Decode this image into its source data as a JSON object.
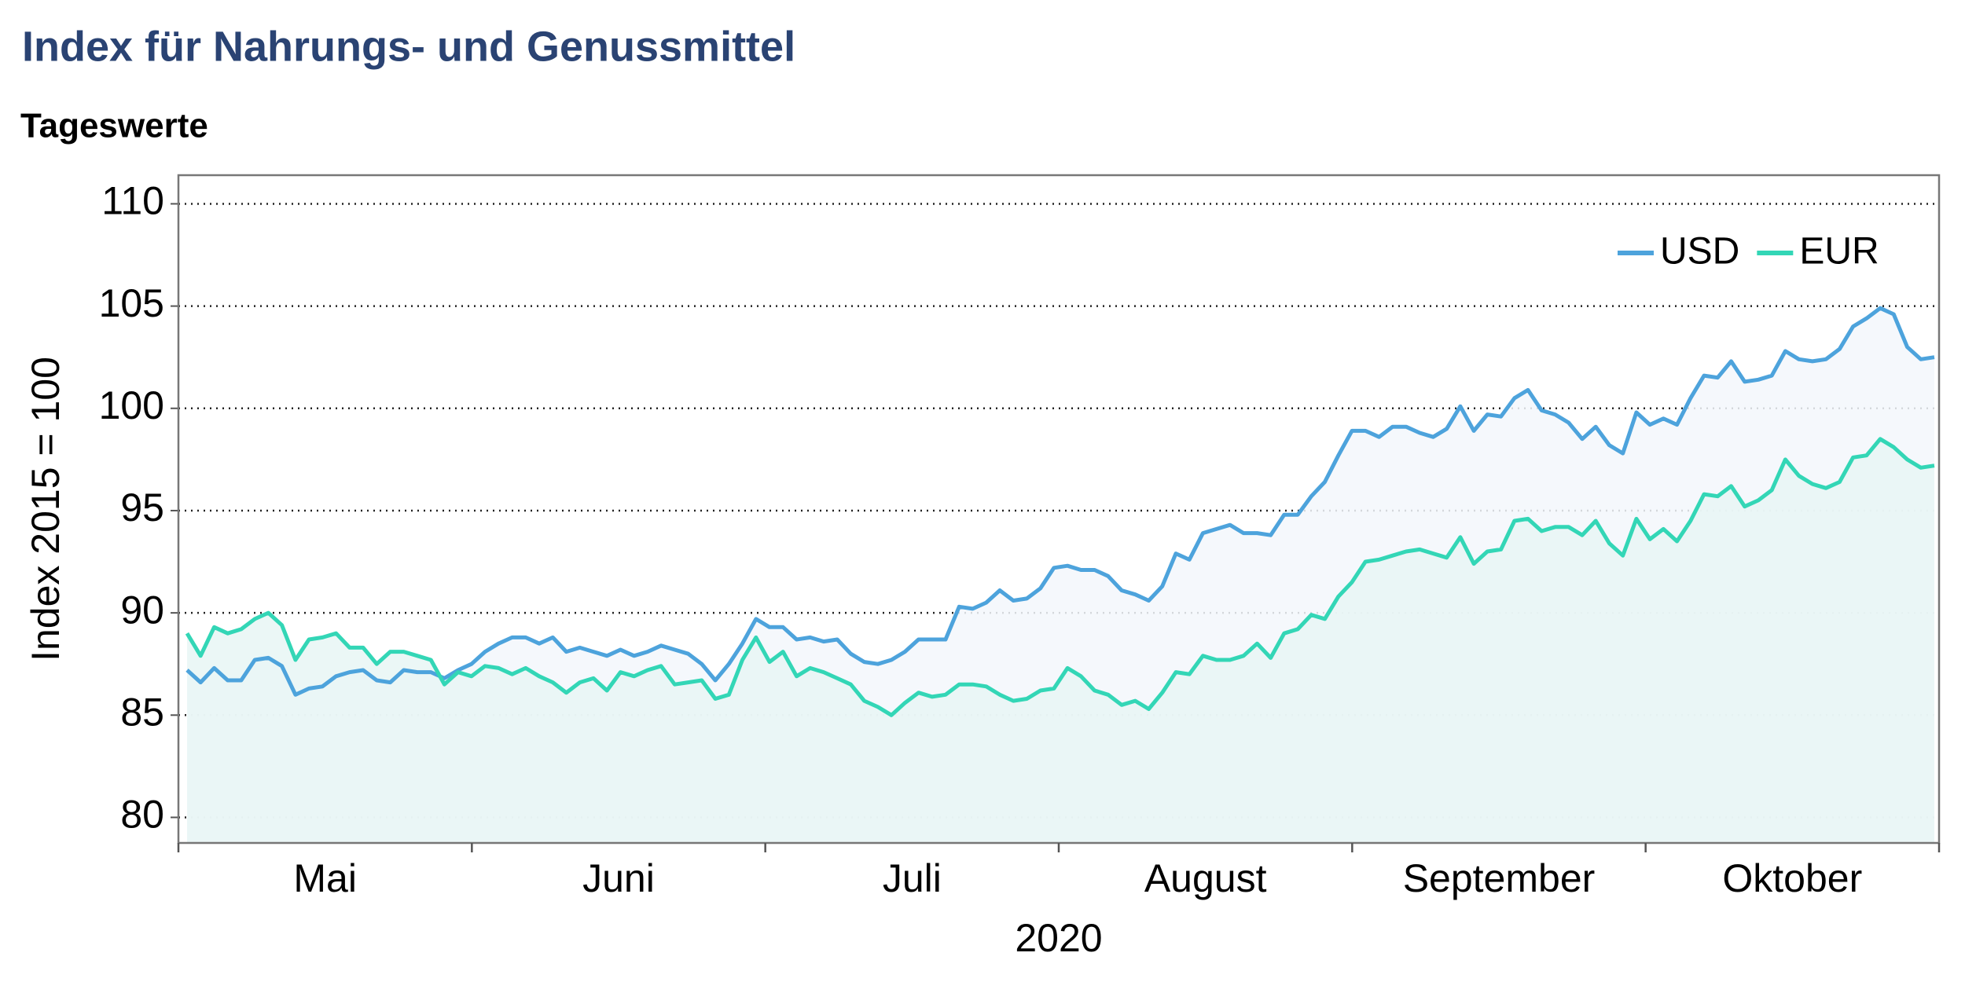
{
  "chart_data": {
    "type": "line",
    "title": "Index für Nahrungs- und Genussmittel",
    "subtitle": "Tageswerte",
    "ylabel": "Index 2015 = 100",
    "xlabel": "2020",
    "months": [
      "Mai",
      "Juni",
      "Juli",
      "August",
      "September",
      "Oktober"
    ],
    "ylim": [
      78.75,
      111.4
    ],
    "yticks": [
      80,
      85,
      90,
      95,
      100,
      105,
      110
    ],
    "grid": true,
    "legend": "upper right",
    "series": [
      {
        "name": "USD",
        "color": "#4da3dc",
        "fill": "#f3f7fb",
        "values": [
          87.2,
          86.6,
          87.3,
          86.7,
          86.7,
          87.7,
          87.8,
          87.4,
          86.0,
          86.3,
          86.4,
          86.9,
          87.1,
          87.2,
          86.7,
          86.6,
          87.2,
          87.1,
          87.1,
          86.8,
          87.2,
          87.5,
          88.1,
          88.5,
          88.8,
          88.8,
          88.5,
          88.8,
          88.1,
          88.3,
          88.1,
          87.9,
          88.2,
          87.9,
          88.1,
          88.4,
          88.2,
          88.0,
          87.5,
          86.7,
          87.5,
          88.5,
          89.7,
          89.3,
          89.3,
          88.7,
          88.8,
          88.6,
          88.7,
          88.0,
          87.6,
          87.5,
          87.7,
          88.1,
          88.7,
          88.7,
          88.7,
          90.3,
          90.2,
          90.5,
          91.1,
          90.6,
          90.7,
          91.2,
          92.2,
          92.3,
          92.1,
          92.1,
          91.8,
          91.1,
          90.9,
          90.6,
          91.3,
          92.9,
          92.6,
          93.9,
          94.1,
          94.3,
          93.9,
          93.9,
          93.8,
          94.8,
          94.8,
          95.7,
          96.4,
          97.7,
          98.9,
          98.9,
          98.6,
          99.1,
          99.1,
          98.8,
          98.6,
          99.0,
          100.1,
          98.9,
          99.7,
          99.6,
          100.5,
          100.9,
          99.9,
          99.7,
          99.3,
          98.5,
          99.1,
          98.2,
          97.8,
          99.8,
          99.2,
          99.5,
          99.2,
          100.5,
          101.6,
          101.5,
          102.3,
          101.3,
          101.4,
          101.6,
          102.8,
          102.4,
          102.3,
          102.4,
          102.9,
          104.0,
          104.4,
          104.9,
          104.6,
          103.0,
          102.4,
          102.5
        ]
      },
      {
        "name": "EUR",
        "color": "#33d6b6",
        "fill": "#e8f6f5",
        "values": [
          89.0,
          87.9,
          89.3,
          89.0,
          89.2,
          89.7,
          90.0,
          89.4,
          87.7,
          88.7,
          88.8,
          89.0,
          88.3,
          88.3,
          87.5,
          88.1,
          88.1,
          87.9,
          87.7,
          86.5,
          87.1,
          86.9,
          87.4,
          87.3,
          87.0,
          87.3,
          86.9,
          86.6,
          86.1,
          86.6,
          86.8,
          86.2,
          87.1,
          86.9,
          87.2,
          87.4,
          86.5,
          86.6,
          86.7,
          85.8,
          86.0,
          87.7,
          88.8,
          87.6,
          88.1,
          86.9,
          87.3,
          87.1,
          86.8,
          86.5,
          85.7,
          85.4,
          85.0,
          85.6,
          86.1,
          85.9,
          86.0,
          86.5,
          86.5,
          86.4,
          86.0,
          85.7,
          85.8,
          86.2,
          86.3,
          87.3,
          86.9,
          86.2,
          86.0,
          85.5,
          85.7,
          85.3,
          86.1,
          87.1,
          87.0,
          87.9,
          87.7,
          87.7,
          87.9,
          88.5,
          87.8,
          89.0,
          89.2,
          89.9,
          89.7,
          90.8,
          91.5,
          92.5,
          92.6,
          92.8,
          93.0,
          93.1,
          92.9,
          92.7,
          93.7,
          92.4,
          93.0,
          93.1,
          94.5,
          94.6,
          94.0,
          94.2,
          94.2,
          93.8,
          94.5,
          93.4,
          92.8,
          94.6,
          93.6,
          94.1,
          93.5,
          94.5,
          95.8,
          95.7,
          96.2,
          95.2,
          95.5,
          96.0,
          97.5,
          96.7,
          96.3,
          96.1,
          96.4,
          97.6,
          97.7,
          98.5,
          98.1,
          97.5,
          97.1,
          97.2
        ]
      }
    ]
  }
}
